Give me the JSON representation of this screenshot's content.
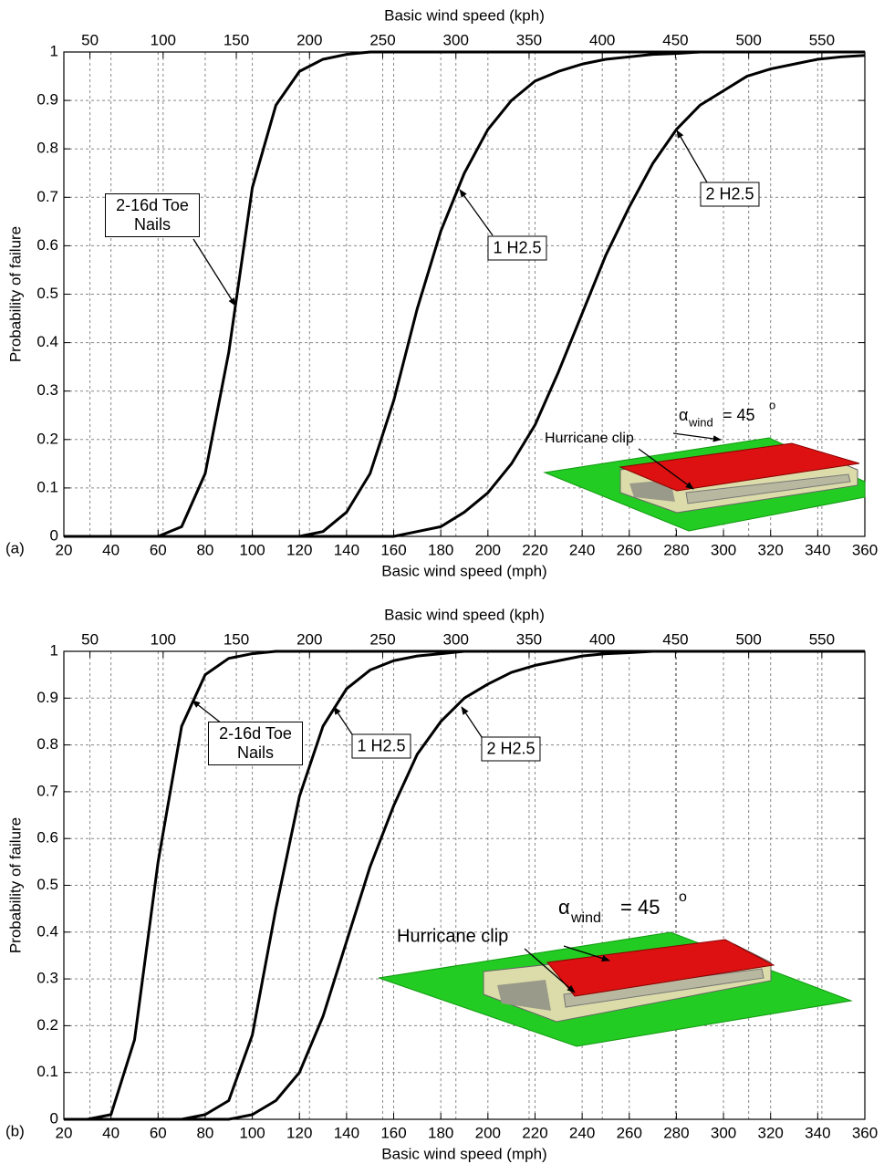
{
  "chart_data": [
    {
      "type": "line",
      "panel_label": "(a)",
      "xlabel": "Basic wind speed (mph)",
      "x2label": "Basic wind speed (kph)",
      "ylabel": "Probability of failure",
      "xlim": [
        20,
        360
      ],
      "xticks": [
        20,
        40,
        60,
        80,
        100,
        120,
        140,
        160,
        180,
        200,
        220,
        240,
        260,
        280,
        300,
        320,
        340,
        360
      ],
      "x2lim": [
        32.19,
        579.36
      ],
      "x2ticks": [
        50,
        100,
        150,
        200,
        250,
        300,
        350,
        400,
        450,
        500,
        550
      ],
      "ylim": [
        0,
        1
      ],
      "yticks": [
        0,
        0.1,
        0.2,
        0.3,
        0.4,
        0.5,
        0.6,
        0.7,
        0.8,
        0.9,
        1
      ],
      "grid": true,
      "x": [
        20,
        30,
        40,
        50,
        60,
        70,
        80,
        90,
        100,
        110,
        120,
        130,
        140,
        150,
        160,
        170,
        180,
        190,
        200,
        210,
        220,
        230,
        240,
        250,
        260,
        270,
        280,
        290,
        300,
        310,
        320,
        330,
        340,
        350,
        360
      ],
      "series": [
        {
          "name": "2-16d Toe Nails",
          "color": "#000000",
          "values": [
            0,
            0,
            0,
            0,
            0,
            0.02,
            0.13,
            0.38,
            0.72,
            0.89,
            0.96,
            0.985,
            0.995,
            1,
            1,
            1,
            1,
            1,
            1,
            1,
            1,
            1,
            1,
            1,
            1,
            1,
            1,
            1,
            1,
            1,
            1,
            1,
            1,
            1,
            1
          ]
        },
        {
          "name": "1 H2.5",
          "color": "#000000",
          "values": [
            0,
            0,
            0,
            0,
            0,
            0,
            0,
            0,
            0,
            0,
            0,
            0.01,
            0.05,
            0.13,
            0.28,
            0.47,
            0.63,
            0.75,
            0.84,
            0.9,
            0.94,
            0.96,
            0.975,
            0.985,
            0.99,
            0.995,
            0.997,
            1,
            1,
            1,
            1,
            1,
            1,
            1,
            1
          ]
        },
        {
          "name": "2 H2.5",
          "color": "#000000",
          "values": [
            0,
            0,
            0,
            0,
            0,
            0,
            0,
            0,
            0,
            0,
            0,
            0,
            0,
            0,
            0,
            0.01,
            0.02,
            0.05,
            0.09,
            0.15,
            0.23,
            0.34,
            0.46,
            0.58,
            0.68,
            0.77,
            0.84,
            0.89,
            0.92,
            0.95,
            0.965,
            0.975,
            0.985,
            0.99,
            0.993
          ]
        }
      ],
      "inset": {
        "clip_label": "Hurricane clip",
        "angle_symbol": "α",
        "angle_subscript": "wind",
        "angle_value": "= 45",
        "angle_unit": "o"
      }
    },
    {
      "type": "line",
      "panel_label": "(b)",
      "xlabel": "Basic wind speed (mph)",
      "x2label": "Basic wind speed (kph)",
      "ylabel": "Probability of failure",
      "xlim": [
        20,
        360
      ],
      "xticks": [
        20,
        40,
        60,
        80,
        100,
        120,
        140,
        160,
        180,
        200,
        220,
        240,
        260,
        280,
        300,
        320,
        340,
        360
      ],
      "x2lim": [
        32.19,
        579.36
      ],
      "x2ticks": [
        50,
        100,
        150,
        200,
        250,
        300,
        350,
        400,
        450,
        500,
        550
      ],
      "ylim": [
        0,
        1
      ],
      "yticks": [
        0,
        0.1,
        0.2,
        0.3,
        0.4,
        0.5,
        0.6,
        0.7,
        0.8,
        0.9,
        1
      ],
      "grid": true,
      "x": [
        20,
        30,
        40,
        50,
        60,
        70,
        80,
        90,
        100,
        110,
        120,
        130,
        140,
        150,
        160,
        170,
        180,
        190,
        200,
        210,
        220,
        230,
        240,
        250,
        260,
        270,
        280,
        290,
        300,
        310,
        320,
        330,
        340,
        350,
        360
      ],
      "series": [
        {
          "name": "2-16d Toe Nails",
          "color": "#000000",
          "values": [
            0,
            0,
            0.01,
            0.17,
            0.55,
            0.84,
            0.95,
            0.985,
            0.995,
            1,
            1,
            1,
            1,
            1,
            1,
            1,
            1,
            1,
            1,
            1,
            1,
            1,
            1,
            1,
            1,
            1,
            1,
            1,
            1,
            1,
            1,
            1,
            1,
            1,
            1
          ]
        },
        {
          "name": "1 H2.5",
          "color": "#000000",
          "values": [
            0,
            0,
            0,
            0,
            0,
            0,
            0.01,
            0.04,
            0.18,
            0.45,
            0.69,
            0.84,
            0.92,
            0.96,
            0.98,
            0.99,
            0.995,
            1,
            1,
            1,
            1,
            1,
            1,
            1,
            1,
            1,
            1,
            1,
            1,
            1,
            1,
            1,
            1,
            1,
            1
          ]
        },
        {
          "name": "2 H2.5",
          "color": "#000000",
          "values": [
            0,
            0,
            0,
            0,
            0,
            0,
            0,
            0,
            0.01,
            0.04,
            0.1,
            0.22,
            0.38,
            0.54,
            0.67,
            0.78,
            0.85,
            0.9,
            0.93,
            0.955,
            0.97,
            0.98,
            0.99,
            0.995,
            0.997,
            1,
            1,
            1,
            1,
            1,
            1,
            1,
            1,
            1,
            1
          ]
        }
      ],
      "inset": {
        "clip_label": "Hurricane clip",
        "angle_symbol": "α",
        "angle_subscript": "wind",
        "angle_value": "= 45",
        "angle_unit": "o"
      }
    }
  ]
}
